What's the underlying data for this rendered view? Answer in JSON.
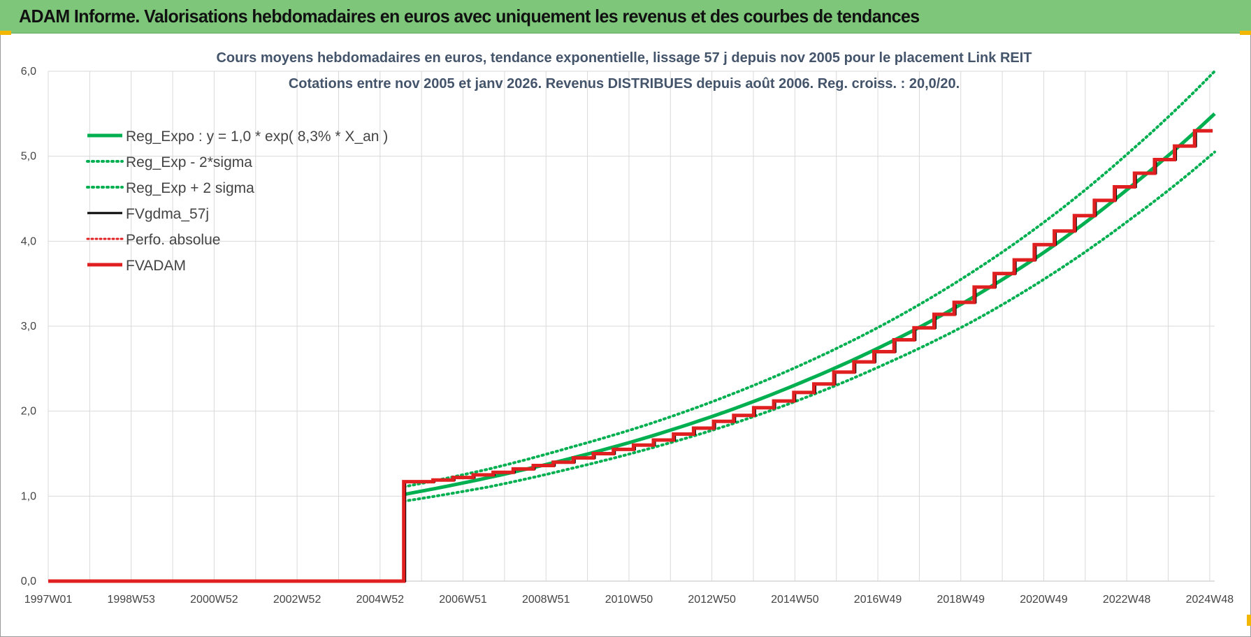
{
  "header": {
    "title": "ADAM Informe. Valorisations hebdomadaires en euros avec uniquement les revenus et des courbes de tendances"
  },
  "colors": {
    "header_bg": "#7dc67a",
    "green": "#00b050",
    "red": "#e02020",
    "black": "#000000",
    "grid": "#d9d9d9"
  },
  "chart_data": {
    "type": "line",
    "title": "Cours moyens hebdomadaires en euros, tendance exponentielle, lissage 57 j depuis nov 2005 pour le placement Link REIT",
    "subtitle": "Cotations entre nov 2005 et janv 2026. Revenus DISTRIBUES depuis août 2006. Reg. croiss. : 20,0/20.",
    "xlabel": "",
    "ylabel": "",
    "x_tick_labels": [
      "1997W01",
      "1998W53",
      "2000W52",
      "2002W52",
      "2004W52",
      "2006W51",
      "2008W51",
      "2010W50",
      "2012W50",
      "2014W50",
      "2016W49",
      "2018W49",
      "2020W49",
      "2022W48",
      "2024W48"
    ],
    "y_tick_labels": [
      "0,0",
      "1,0",
      "2,0",
      "3,0",
      "4,0",
      "5,0",
      "6,0"
    ],
    "xlim": [
      1997.0,
      2026.1
    ],
    "ylim": [
      0,
      6
    ],
    "grid": true,
    "legend_position": "top-left",
    "start_year": 2005.87,
    "series": [
      {
        "name": "Reg_Expo : y = 1,0 * exp( 8,3% *  X_an )",
        "style": "solid-green",
        "x": [
          2005.87,
          2008,
          2010,
          2012,
          2014,
          2016,
          2018,
          2020,
          2022,
          2024,
          2026.1
        ],
        "y": [
          1.02,
          1.22,
          1.44,
          1.7,
          2.01,
          2.38,
          2.81,
          3.32,
          3.92,
          4.64,
          5.5
        ]
      },
      {
        "name": "Reg_Exp - 2*sigma",
        "style": "dotted-green",
        "x": [
          2005.87,
          2008,
          2010,
          2012,
          2014,
          2016,
          2018,
          2020,
          2022,
          2024,
          2026.1
        ],
        "y": [
          0.94,
          1.11,
          1.32,
          1.56,
          1.84,
          2.18,
          2.58,
          3.04,
          3.6,
          4.26,
          5.05
        ]
      },
      {
        "name": "Reg_Exp + 2 sigma",
        "style": "dotted-green",
        "x": [
          2005.87,
          2008,
          2010,
          2012,
          2014,
          2016,
          2018,
          2020,
          2022,
          2024,
          2026.1
        ],
        "y": [
          1.11,
          1.32,
          1.57,
          1.85,
          2.19,
          2.59,
          3.06,
          3.62,
          4.28,
          5.06,
          6.0
        ]
      },
      {
        "name": "FVgdma_57j",
        "style": "solid-black"
      },
      {
        "name": "Perfo. absolue",
        "style": "dotted-red"
      },
      {
        "name": "FVADAM",
        "style": "solid-red",
        "steps_x": [
          1997.0,
          2005.87,
          2006.6,
          2007.1,
          2007.6,
          2008.1,
          2008.6,
          2009.1,
          2009.6,
          2010.1,
          2010.6,
          2011.1,
          2011.6,
          2012.1,
          2012.6,
          2013.1,
          2013.6,
          2014.1,
          2014.6,
          2015.1,
          2015.6,
          2016.1,
          2016.6,
          2017.1,
          2017.6,
          2018.1,
          2018.6,
          2019.1,
          2019.6,
          2020.1,
          2020.6,
          2021.1,
          2021.6,
          2022.1,
          2022.6,
          2023.1,
          2023.6,
          2024.1,
          2024.6,
          2025.1,
          2025.6
        ],
        "steps_y": [
          0.0,
          1.17,
          1.19,
          1.22,
          1.25,
          1.28,
          1.32,
          1.36,
          1.4,
          1.45,
          1.5,
          1.55,
          1.6,
          1.66,
          1.73,
          1.8,
          1.88,
          1.95,
          2.04,
          2.12,
          2.22,
          2.32,
          2.46,
          2.58,
          2.7,
          2.84,
          2.98,
          3.14,
          3.28,
          3.46,
          3.62,
          3.78,
          3.96,
          4.12,
          4.3,
          4.48,
          4.64,
          4.8,
          4.96,
          5.12,
          5.3
        ]
      }
    ]
  }
}
